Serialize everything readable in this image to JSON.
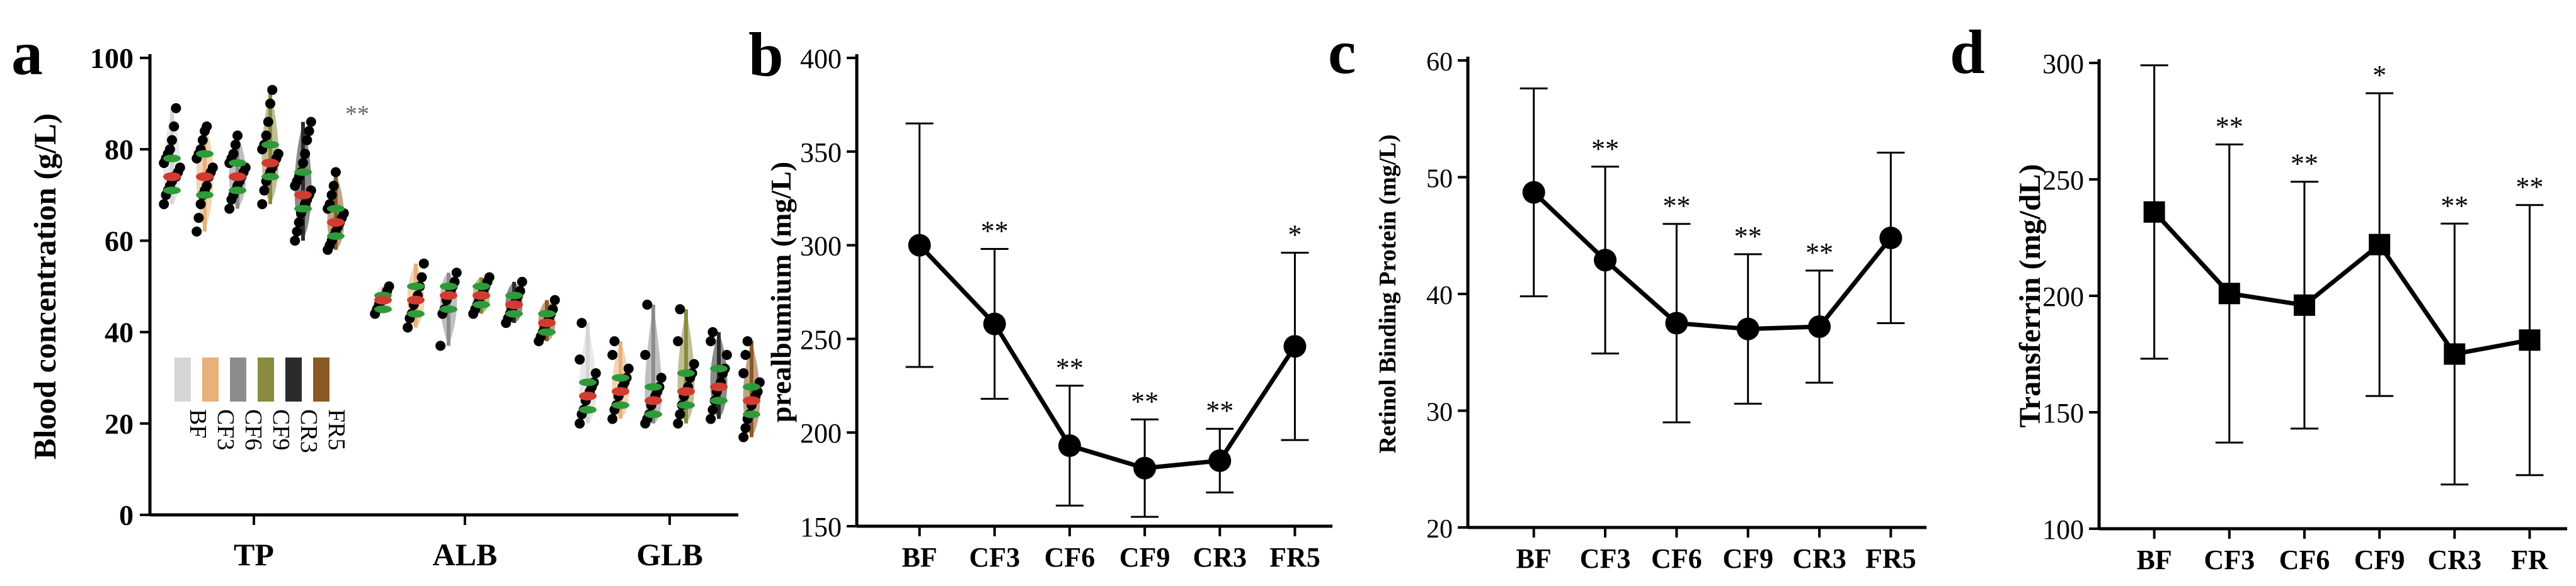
{
  "colors": {
    "axis": "#000000",
    "line": "#000000",
    "dots": "#000000",
    "median_dots": "#d23b2f",
    "quartile_dots": "#2e9a3a",
    "legend": {
      "BF": "#d6d6d6",
      "CF3": "#e8b07a",
      "CF6": "#8c8c8c",
      "CF9": "#8a8a3e",
      "CR3": "#2b2b2b",
      "FR5": "#8a5a24"
    }
  },
  "chart_data": [
    {
      "panel": "a",
      "type": "scatter",
      "subtype": "violin-dot",
      "ylabel": "Blood concentration (g/L)",
      "ylim": [
        0,
        100
      ],
      "yticks": [
        "0",
        "20",
        "40",
        "60",
        "80",
        "100"
      ],
      "categories": [
        "TP",
        "ALB",
        "GLB"
      ],
      "groups": [
        "BF",
        "CF3",
        "CF6",
        "CF9",
        "CR3",
        "FR5"
      ],
      "annotations": [
        {
          "category": "TP",
          "group": "FR5",
          "text": "**"
        }
      ],
      "series": [
        {
          "category": "TP",
          "group": "BF",
          "median": 74,
          "q1": 71,
          "q3": 78,
          "min": 68,
          "max": 89,
          "points": [
            68,
            70,
            71,
            72,
            73,
            74,
            74,
            75,
            76,
            77,
            78,
            79,
            80,
            82,
            85,
            89
          ]
        },
        {
          "category": "TP",
          "group": "CF3",
          "median": 74,
          "q1": 70,
          "q3": 79,
          "min": 62,
          "max": 85,
          "points": [
            62,
            65,
            68,
            70,
            71,
            72,
            74,
            75,
            76,
            78,
            79,
            80,
            82,
            84,
            85
          ]
        },
        {
          "category": "TP",
          "group": "CF6",
          "median": 74,
          "q1": 71,
          "q3": 77,
          "min": 67,
          "max": 83,
          "points": [
            67,
            69,
            70,
            71,
            72,
            73,
            74,
            75,
            76,
            77,
            78,
            79,
            81,
            83
          ]
        },
        {
          "category": "TP",
          "group": "CF9",
          "median": 77,
          "q1": 74,
          "q3": 81,
          "min": 68,
          "max": 93,
          "points": [
            68,
            71,
            73,
            74,
            75,
            76,
            77,
            78,
            79,
            80,
            81,
            83,
            86,
            90,
            93
          ]
        },
        {
          "category": "TP",
          "group": "CR3",
          "median": 70,
          "q1": 67,
          "q3": 75,
          "min": 60,
          "max": 86,
          "points": [
            60,
            62,
            64,
            66,
            67,
            68,
            69,
            70,
            71,
            72,
            73,
            74,
            75,
            77,
            79,
            82,
            84,
            86
          ]
        },
        {
          "category": "TP",
          "group": "FR5",
          "median": 64,
          "q1": 61,
          "q3": 67,
          "min": 58,
          "max": 75,
          "points": [
            58,
            59,
            60,
            61,
            62,
            63,
            64,
            65,
            66,
            67,
            68,
            70,
            72,
            75
          ]
        },
        {
          "category": "ALB",
          "group": "BF",
          "median": 47,
          "q1": 45,
          "q3": 48,
          "min": 44,
          "max": 50,
          "points": [
            44,
            45,
            46,
            47,
            47,
            48,
            49,
            50
          ]
        },
        {
          "category": "ALB",
          "group": "CF3",
          "median": 47,
          "q1": 44,
          "q3": 50,
          "min": 41,
          "max": 55,
          "points": [
            41,
            43,
            44,
            46,
            47,
            48,
            50,
            52,
            55
          ]
        },
        {
          "category": "ALB",
          "group": "CF6",
          "median": 48,
          "q1": 45,
          "q3": 50,
          "min": 37,
          "max": 53,
          "points": [
            37,
            44,
            45,
            47,
            48,
            49,
            50,
            51,
            53
          ]
        },
        {
          "category": "ALB",
          "group": "CF9",
          "median": 48,
          "q1": 46,
          "q3": 50,
          "min": 44,
          "max": 52,
          "points": [
            44,
            45,
            46,
            47,
            48,
            49,
            50,
            51,
            52
          ]
        },
        {
          "category": "ALB",
          "group": "CR3",
          "median": 46,
          "q1": 44,
          "q3": 48,
          "min": 42,
          "max": 51,
          "points": [
            42,
            43,
            44,
            45,
            46,
            47,
            48,
            49,
            51
          ]
        },
        {
          "category": "ALB",
          "group": "FR5",
          "median": 42,
          "q1": 40,
          "q3": 44,
          "min": 38,
          "max": 47,
          "points": [
            38,
            39,
            40,
            41,
            42,
            43,
            44,
            45,
            47
          ]
        },
        {
          "category": "GLB",
          "group": "BF",
          "median": 26,
          "q1": 23,
          "q3": 29,
          "min": 20,
          "max": 42,
          "points": [
            20,
            22,
            23,
            25,
            26,
            27,
            28,
            29,
            31,
            34,
            42
          ]
        },
        {
          "category": "GLB",
          "group": "CF3",
          "median": 27,
          "q1": 24,
          "q3": 30,
          "min": 21,
          "max": 38,
          "points": [
            21,
            23,
            24,
            26,
            27,
            28,
            29,
            30,
            32,
            35,
            38
          ]
        },
        {
          "category": "GLB",
          "group": "CF6",
          "median": 25,
          "q1": 22,
          "q3": 28,
          "min": 20,
          "max": 46,
          "points": [
            20,
            21,
            22,
            24,
            25,
            26,
            27,
            28,
            30,
            35,
            46
          ]
        },
        {
          "category": "GLB",
          "group": "CF9",
          "median": 27,
          "q1": 24,
          "q3": 31,
          "min": 20,
          "max": 45,
          "points": [
            20,
            22,
            24,
            26,
            27,
            28,
            30,
            31,
            33,
            38,
            45
          ]
        },
        {
          "category": "GLB",
          "group": "CR3",
          "median": 28,
          "q1": 25,
          "q3": 32,
          "min": 21,
          "max": 40,
          "points": [
            21,
            23,
            25,
            27,
            28,
            29,
            31,
            32,
            35,
            38,
            40
          ]
        },
        {
          "category": "GLB",
          "group": "FR5",
          "median": 25,
          "q1": 22,
          "q3": 28,
          "min": 17,
          "max": 38,
          "points": [
            17,
            19,
            21,
            22,
            24,
            25,
            26,
            27,
            29,
            31,
            35,
            38
          ]
        }
      ]
    },
    {
      "panel": "b",
      "type": "line",
      "ylabel": "prealbumium (mg/L)",
      "ylim": [
        150,
        400
      ],
      "yticks": [
        "150",
        "200",
        "250",
        "300",
        "350",
        "400"
      ],
      "categories": [
        "BF",
        "CF3",
        "CF6",
        "CF9",
        "CR3",
        "FR5"
      ],
      "values": [
        300,
        258,
        193,
        181,
        185,
        246
      ],
      "errors": [
        65,
        40,
        32,
        26,
        17,
        50
      ],
      "annotations": [
        "",
        "**",
        "**",
        "**",
        "**",
        "*"
      ],
      "marker": "circle"
    },
    {
      "panel": "c",
      "type": "line",
      "ylabel": "Retinol Binding Protein (mg/L)",
      "ylim": [
        20,
        60
      ],
      "yticks": [
        "20",
        "30",
        "40",
        "50",
        "60"
      ],
      "categories": [
        "BF",
        "CF3",
        "CF6",
        "CF9",
        "CR3",
        "FR5"
      ],
      "values": [
        48.7,
        42.9,
        37.5,
        37.0,
        37.2,
        44.8
      ],
      "errors": [
        8.9,
        8.0,
        8.5,
        6.4,
        4.8,
        7.3
      ],
      "annotations": [
        "",
        "**",
        "**",
        "**",
        "**",
        ""
      ],
      "marker": "circle"
    },
    {
      "panel": "d",
      "type": "line",
      "ylabel": "Transferrin (mg/dL)",
      "ylim": [
        100,
        300
      ],
      "yticks": [
        "100",
        "150",
        "200",
        "250",
        "300"
      ],
      "categories": [
        "BF",
        "CF3",
        "CF6",
        "CF9",
        "CR3",
        "FR"
      ],
      "values": [
        236,
        201,
        196,
        222,
        175,
        181
      ],
      "errors": [
        63,
        64,
        53,
        65,
        56,
        58
      ],
      "annotations": [
        "",
        "**",
        "**",
        "*",
        "**",
        "**"
      ],
      "marker": "square"
    }
  ]
}
